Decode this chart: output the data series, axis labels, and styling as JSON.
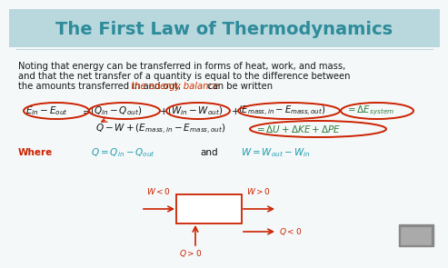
{
  "title": "The First Law of Thermodynamics",
  "title_color": "#2e8b9a",
  "header_bg": "#a8d0d8",
  "bg_color": "#f5f8f8",
  "body_text_color": "#1a1a1a",
  "highlight_color": "#cc3300",
  "green_color": "#2e7d3c",
  "red_color": "#cc2200",
  "cyan_color": "#1a9ab0",
  "para_line1": "Noting that energy can be transferred in forms of heat, work, and mass,",
  "para_line2": "and that the net transfer of a quantity is equal to the difference between",
  "para_line3_a": "the amounts transferred in and out,",
  "para_line3_b": " the energy balance",
  "para_line3_c": " can be written",
  "annot_wlt0": "$W<0$",
  "annot_wgt0": "$W>0$",
  "annot_qgt0": "$Q>0$",
  "annot_qlt0": "$Q<0$"
}
